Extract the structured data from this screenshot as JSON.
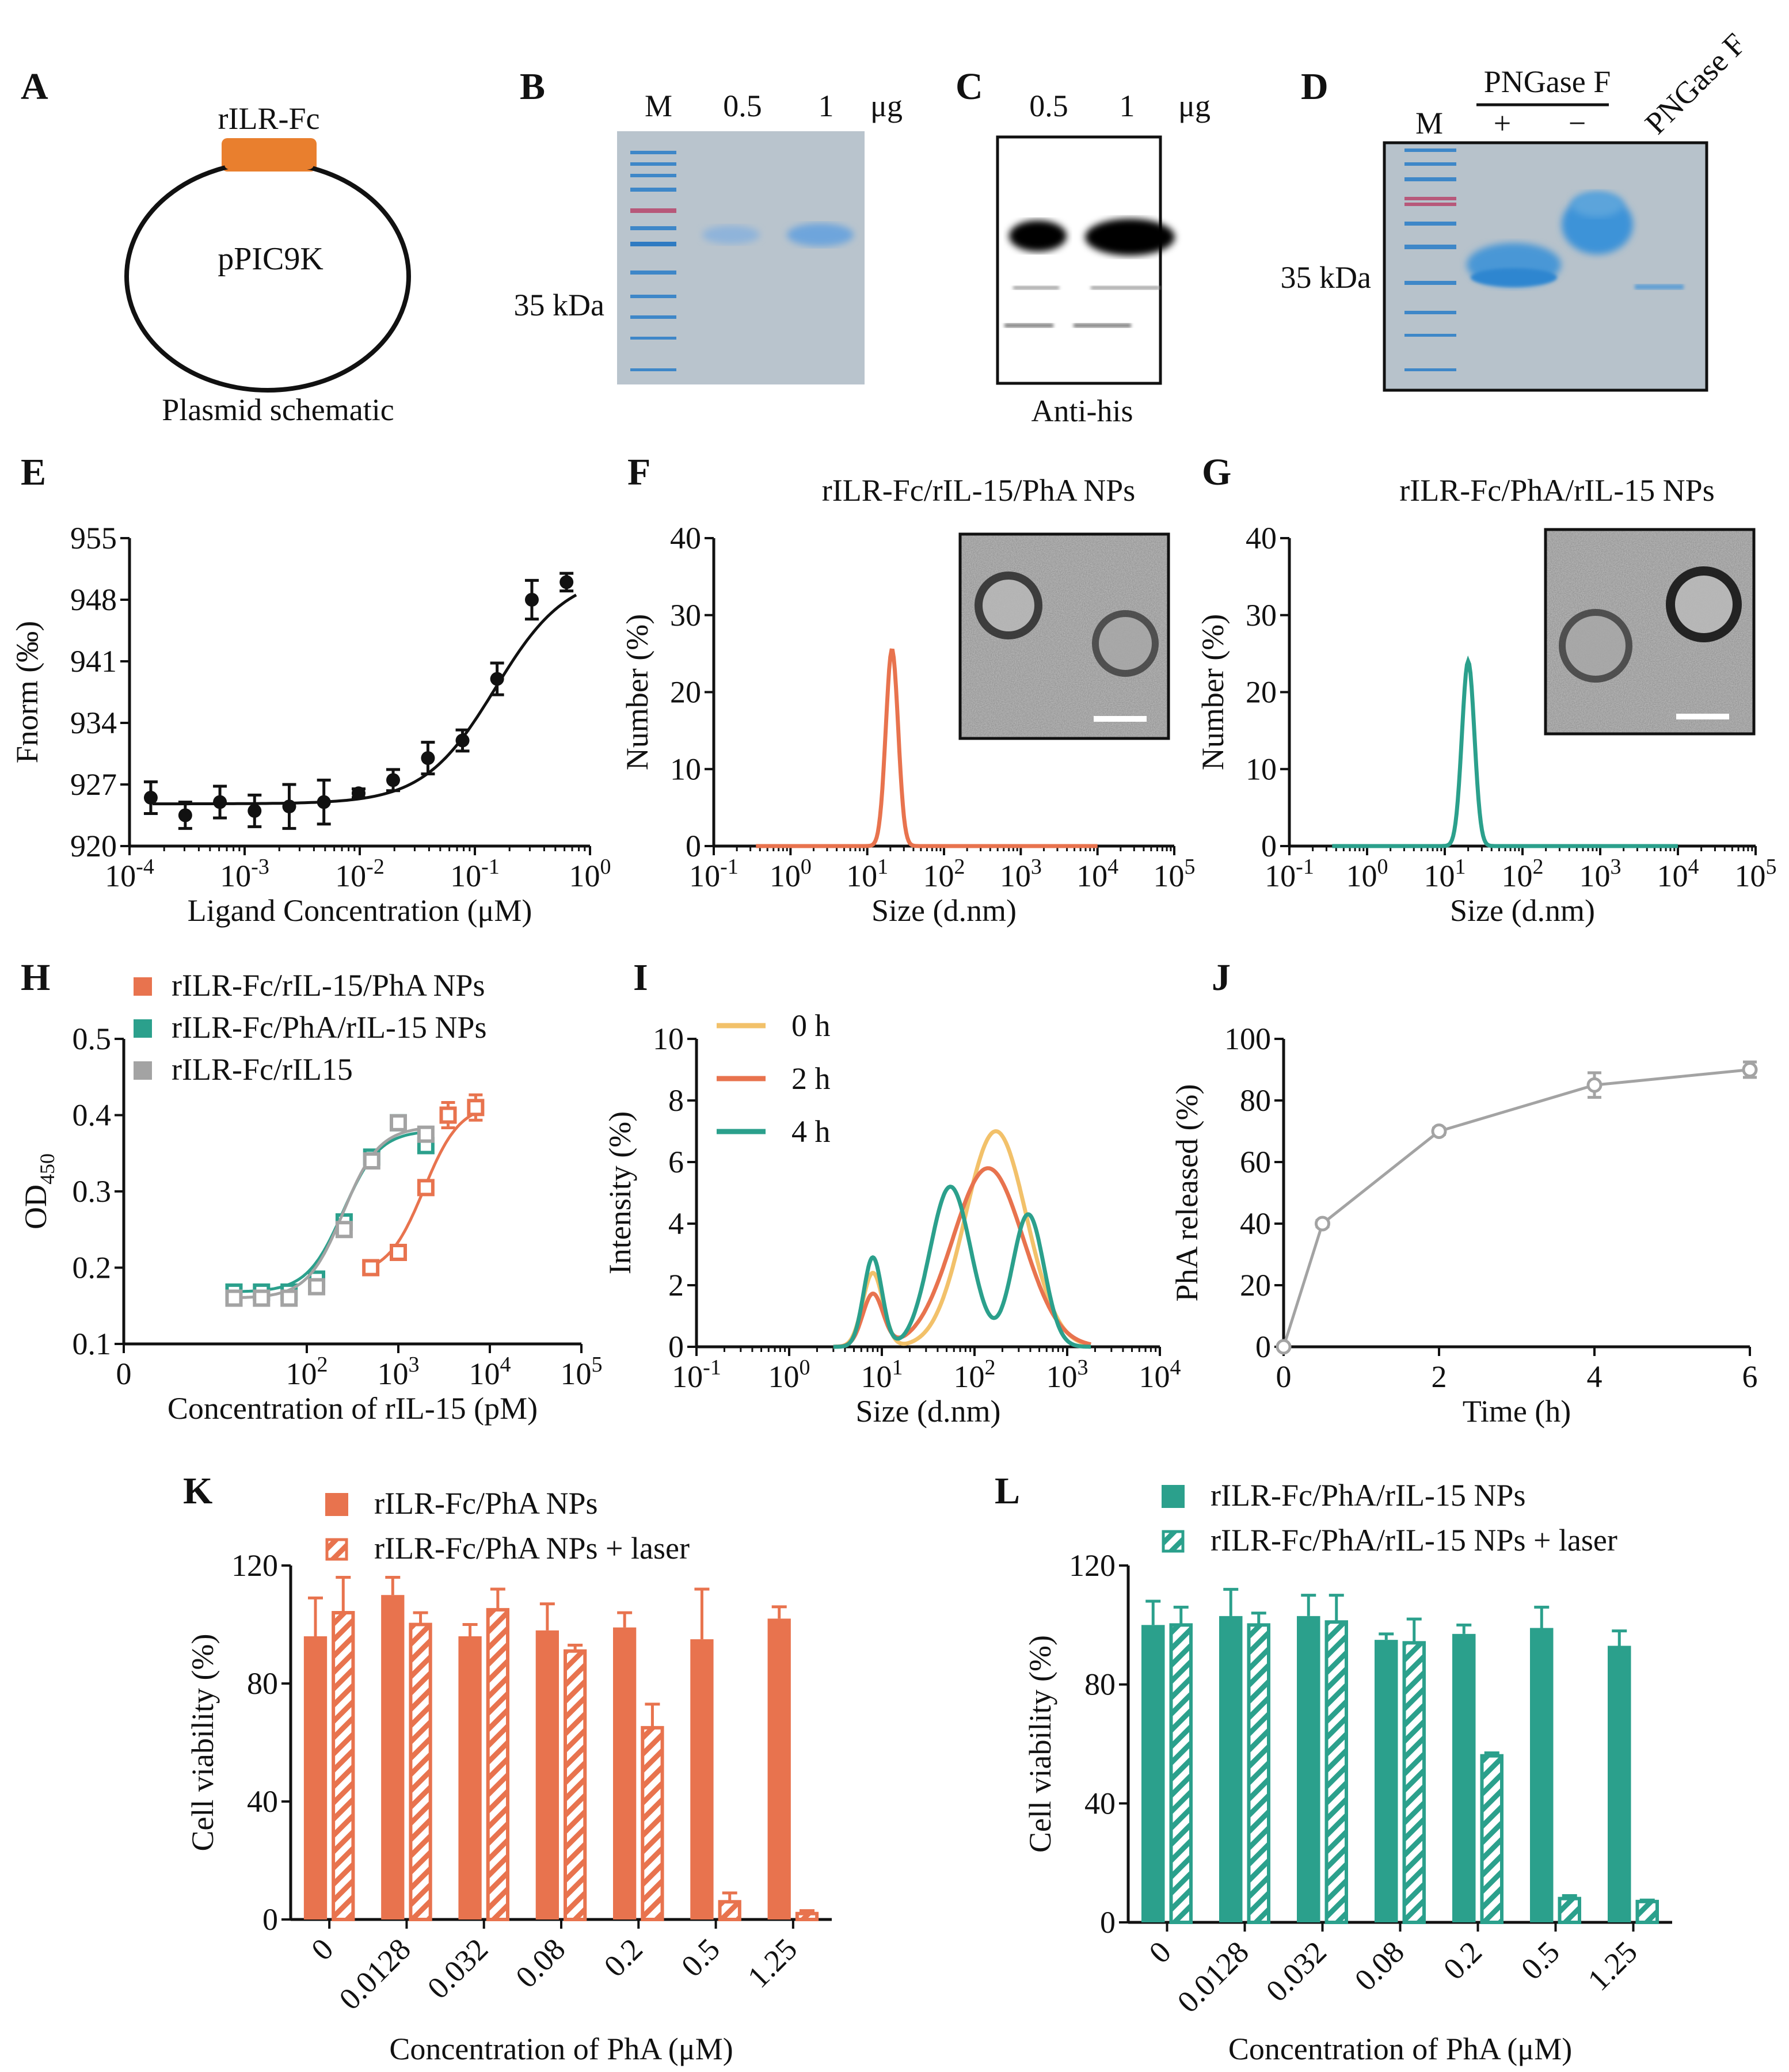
{
  "colors": {
    "orange": "#E8734E",
    "teal": "#2BA08C",
    "gray": "#A3A3A3",
    "yellow": "#F2C16A",
    "black": "#111111",
    "gel_bg": "#B8C3CC",
    "gel_band": "#4E97D3",
    "gel_marker": "#3E87C8",
    "gel_marker_red": "#B7587A"
  },
  "panels": {
    "A": {
      "letter": "A",
      "insert": "rILR-Fc",
      "plasmid": "pPIC9K",
      "caption": "Plasmid schematic"
    },
    "B": {
      "letter": "B",
      "lanes": [
        "M",
        "0.5",
        "1"
      ],
      "unit": "μg",
      "mw": "35 kDa"
    },
    "C": {
      "letter": "C",
      "lanes": [
        "0.5",
        "1"
      ],
      "unit": "μg",
      "caption": "Anti-his"
    },
    "D": {
      "letter": "D",
      "enzyme": "PNGase F",
      "plus": "+",
      "minus": "−",
      "marker": "M",
      "enzyme_lane": "PNGase F",
      "mw": "35 kDa"
    },
    "E": {
      "letter": "E"
    },
    "F": {
      "letter": "F"
    },
    "G": {
      "letter": "G"
    },
    "H": {
      "letter": "H"
    },
    "I": {
      "letter": "I"
    },
    "J": {
      "letter": "J"
    },
    "K": {
      "letter": "K"
    },
    "L": {
      "letter": "L"
    }
  },
  "chart_data": [
    {
      "id": "E",
      "type": "scatter",
      "xlabel": "Ligand Concentration (μM)",
      "ylabel": "Fnorm (‰)",
      "xscale": "log",
      "xlim": [
        0.0001,
        1
      ],
      "ylim": [
        920,
        955
      ],
      "xticks": [
        {
          "v": 0.0001,
          "b": "10",
          "e": "-4"
        },
        {
          "v": 0.001,
          "b": "10",
          "e": "-3"
        },
        {
          "v": 0.01,
          "b": "10",
          "e": "-2"
        },
        {
          "v": 0.1,
          "b": "10",
          "e": "-1"
        },
        {
          "v": 1,
          "b": "10",
          "e": "0"
        }
      ],
      "yticks": [
        920,
        927,
        934,
        941,
        948,
        955
      ],
      "x": [
        0.000153,
        0.000305,
        0.00061,
        0.00122,
        0.00244,
        0.00488,
        0.00977,
        0.0195,
        0.0391,
        0.0781,
        0.156,
        0.3125,
        0.625
      ],
      "y": [
        925.5,
        923.5,
        925,
        924,
        924.5,
        925,
        926,
        927.5,
        930,
        932,
        939,
        948,
        950
      ],
      "err": [
        1.8,
        1.5,
        1.8,
        1.8,
        2.5,
        2.5,
        0.5,
        1.2,
        1.8,
        1.2,
        1.8,
        2.2,
        1.0
      ]
    },
    {
      "id": "F",
      "type": "line",
      "title": "rILR-Fc/rIL-15/PhA NPs",
      "xlabel": "Size (d.nm)",
      "ylabel": "Number (%)",
      "xscale": "log",
      "xlim": [
        0.1,
        100000
      ],
      "ylim": [
        0,
        40
      ],
      "xticks": [
        {
          "v": 0.1,
          "b": "10",
          "e": "-1"
        },
        {
          "v": 1,
          "b": "10",
          "e": "0"
        },
        {
          "v": 10,
          "b": "10",
          "e": "1"
        },
        {
          "v": 100,
          "b": "10",
          "e": "2"
        },
        {
          "v": 1000,
          "b": "10",
          "e": "3"
        },
        {
          "v": 10000,
          "b": "10",
          "e": "4"
        },
        {
          "v": 100000,
          "b": "10",
          "e": "5"
        }
      ],
      "yticks": [
        0,
        10,
        20,
        30,
        40
      ],
      "series": [
        {
          "name": "rILR-Fc/rIL-15/PhA NPs",
          "color": "#E8734E",
          "peak_size": 21,
          "peak_value": 25.5,
          "width_decades": 0.08
        }
      ]
    },
    {
      "id": "G",
      "type": "line",
      "title": "rILR-Fc/PhA/rIL-15 NPs",
      "xlabel": "Size (d.nm)",
      "ylabel": "Number (%)",
      "xscale": "log",
      "xlim": [
        0.1,
        100000
      ],
      "ylim": [
        0,
        40
      ],
      "xticks": [
        {
          "v": 0.1,
          "b": "10",
          "e": "-1"
        },
        {
          "v": 1,
          "b": "10",
          "e": "0"
        },
        {
          "v": 10,
          "b": "10",
          "e": "1"
        },
        {
          "v": 100,
          "b": "10",
          "e": "2"
        },
        {
          "v": 1000,
          "b": "10",
          "e": "3"
        },
        {
          "v": 10000,
          "b": "10",
          "e": "4"
        },
        {
          "v": 100000,
          "b": "10",
          "e": "5"
        }
      ],
      "yticks": [
        0,
        10,
        20,
        30,
        40
      ],
      "series": [
        {
          "name": "rILR-Fc/PhA/rIL-15 NPs",
          "color": "#2BA08C",
          "peak_size": 20,
          "peak_value": 24,
          "width_decades": 0.08
        }
      ]
    },
    {
      "id": "H",
      "type": "scatter",
      "xlabel": "Concentration of rIL-15 (pM)",
      "ylabel_main": "OD",
      "ylabel_sub": "450",
      "xscale": "log",
      "xlim": [
        1,
        100000
      ],
      "ylim": [
        0.1,
        0.5
      ],
      "xticks": [
        {
          "v": 1,
          "b": "0",
          "e": ""
        },
        {
          "v": 100,
          "b": "10",
          "e": "2"
        },
        {
          "v": 1000,
          "b": "10",
          "e": "3"
        },
        {
          "v": 10000,
          "b": "10",
          "e": "4"
        },
        {
          "v": 100000,
          "b": "10",
          "e": "5"
        }
      ],
      "yticks": [
        0.1,
        0.2,
        0.3,
        0.4,
        0.5
      ],
      "series": [
        {
          "name": "rILR-Fc/rIL-15/PhA NPs",
          "color": "#E8734E",
          "x": [
            500,
            1000,
            2000,
            3500,
            7000
          ],
          "y": [
            0.2,
            0.22,
            0.305,
            0.4,
            0.41
          ],
          "fit": {
            "bottom": 0.19,
            "top": 0.415,
            "ec50": 1900,
            "hill": 2.2,
            "from": 500,
            "to": 7000
          }
        },
        {
          "name": "rILR-Fc/PhA/rIL-15 NPs",
          "color": "#2BA08C",
          "x": [
            16,
            32,
            64,
            128,
            256,
            512,
            1000,
            2000
          ],
          "y": [
            0.168,
            0.168,
            0.168,
            0.185,
            0.26,
            0.345,
            0.39,
            0.36
          ],
          "fit": {
            "bottom": 0.168,
            "top": 0.38,
            "ec50": 250,
            "hill": 2.2,
            "from": 16,
            "to": 2000
          }
        },
        {
          "name": "rILR-Fc/rIL15",
          "color": "#A3A3A3",
          "x": [
            16,
            32,
            64,
            128,
            256,
            512,
            1000,
            2000
          ],
          "y": [
            0.16,
            0.16,
            0.16,
            0.175,
            0.25,
            0.34,
            0.39,
            0.375
          ],
          "fit": {
            "bottom": 0.16,
            "top": 0.385,
            "ec50": 250,
            "hill": 2.2,
            "from": 16,
            "to": 2000
          }
        }
      ]
    },
    {
      "id": "I",
      "type": "line",
      "xlabel": "Size (d.nm)",
      "ylabel": "Intensity (%)",
      "xscale": "log",
      "xlim": [
        0.1,
        10000
      ],
      "ylim": [
        0,
        10
      ],
      "xticks": [
        {
          "v": 0.1,
          "b": "10",
          "e": "-1"
        },
        {
          "v": 1,
          "b": "10",
          "e": "0"
        },
        {
          "v": 10,
          "b": "10",
          "e": "1"
        },
        {
          "v": 100,
          "b": "10",
          "e": "2"
        },
        {
          "v": 1000,
          "b": "10",
          "e": "3"
        },
        {
          "v": 10000,
          "b": "10",
          "e": "4"
        }
      ],
      "yticks": [
        0,
        2,
        4,
        6,
        8,
        10
      ],
      "series": [
        {
          "name": "0 h",
          "color": "#F2C16A",
          "peaks": [
            [
              8,
              2.4,
              0.11
            ],
            [
              170,
              7.0,
              0.33
            ]
          ]
        },
        {
          "name": "2 h",
          "color": "#E8734E",
          "peaks": [
            [
              8,
              1.7,
              0.11
            ],
            [
              140,
              5.8,
              0.38
            ]
          ]
        },
        {
          "name": "4 h",
          "color": "#2BA08C",
          "peaks": [
            [
              8,
              2.9,
              0.1
            ],
            [
              55,
              5.2,
              0.22
            ],
            [
              380,
              4.3,
              0.17
            ]
          ]
        }
      ]
    },
    {
      "id": "J",
      "type": "line",
      "xlabel": "Time (h)",
      "ylabel": "PhA released (%)",
      "xlim": [
        0,
        6
      ],
      "ylim": [
        0,
        100
      ],
      "xticks": [
        0,
        2,
        4,
        6
      ],
      "yticks": [
        0,
        20,
        40,
        60,
        80,
        100
      ],
      "x": [
        0,
        0.5,
        2,
        4,
        6
      ],
      "y": [
        0,
        40,
        70,
        85,
        90
      ],
      "err": [
        0,
        1,
        1,
        4,
        2.5
      ]
    },
    {
      "id": "K",
      "type": "bar",
      "xlabel": "Concentration of PhA (μM)",
      "ylabel": "Cell viability (%)",
      "categories": [
        "0",
        "0.0128",
        "0.032",
        "0.08",
        "0.2",
        "0.5",
        "1.25"
      ],
      "ylim": [
        0,
        120
      ],
      "yticks": [
        0,
        40,
        80,
        120
      ],
      "color": "#E8734E",
      "series": [
        {
          "name": "rILR-Fc/PhA NPs",
          "pattern": "solid",
          "values": [
            96,
            110,
            96,
            98,
            99,
            95,
            102
          ],
          "err": [
            13,
            6,
            4,
            9,
            5,
            17,
            4
          ]
        },
        {
          "name": "rILR-Fc/PhA NPs + laser",
          "pattern": "hatch",
          "values": [
            104,
            100,
            105,
            91,
            65,
            6,
            2
          ],
          "err": [
            12,
            4,
            7,
            2,
            8,
            3,
            1
          ]
        }
      ]
    },
    {
      "id": "L",
      "type": "bar",
      "xlabel": "Concentration of PhA (μM)",
      "ylabel": "Cell viability (%)",
      "categories": [
        "0",
        "0.0128",
        "0.032",
        "0.08",
        "0.2",
        "0.5",
        "1.25"
      ],
      "ylim": [
        0,
        120
      ],
      "yticks": [
        0,
        40,
        80,
        120
      ],
      "color": "#2BA08C",
      "series": [
        {
          "name": "rILR-Fc/PhA/rIL-15 NPs",
          "pattern": "solid",
          "values": [
            100,
            103,
            103,
            95,
            97,
            99,
            93
          ],
          "err": [
            8,
            9,
            7,
            2,
            3,
            7,
            5
          ]
        },
        {
          "name": "rILR-Fc/PhA/rIL-15 NPs + laser",
          "pattern": "hatch",
          "values": [
            100,
            100,
            101,
            94,
            56,
            8,
            7
          ],
          "err": [
            6,
            4,
            9,
            8,
            1,
            1,
            0.5
          ]
        }
      ]
    }
  ]
}
